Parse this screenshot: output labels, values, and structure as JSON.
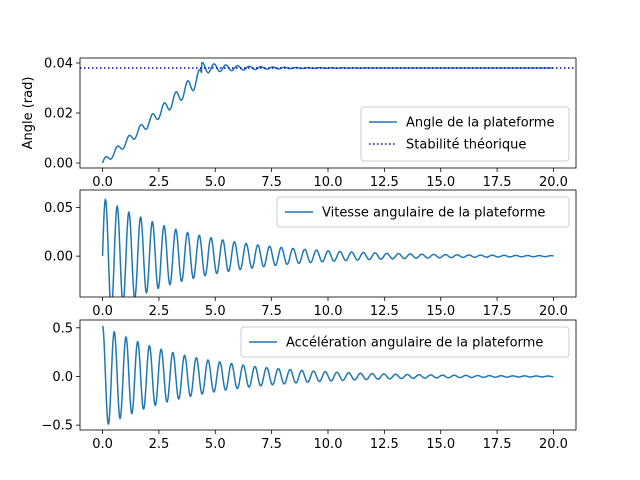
{
  "chart_data": [
    {
      "type": "line",
      "ylabel": "Angle (rad)",
      "xlim": [
        -1.0,
        21.0
      ],
      "ylim": [
        -0.002,
        0.042
      ],
      "xticks": [
        "0.0",
        "2.5",
        "5.0",
        "7.5",
        "10.0",
        "12.5",
        "15.0",
        "17.5",
        "20.0"
      ],
      "xtick_values": [
        0,
        2.5,
        5,
        7.5,
        10,
        12.5,
        15,
        17.5,
        20
      ],
      "yticks": [
        "0.00",
        "0.02",
        "0.04"
      ],
      "ytick_values": [
        0.0,
        0.02,
        0.04
      ],
      "legend_position": "lower-right",
      "grid": false,
      "series": [
        {
          "name": "Angle de la plateforme",
          "color": "#1f77b4",
          "style": "solid",
          "model": "angle",
          "x": [
            0,
            1,
            2,
            3,
            4,
            4.4,
            5,
            6,
            8,
            10,
            15,
            20
          ],
          "y": [
            0.0,
            0.008,
            0.016,
            0.024,
            0.033,
            0.04,
            0.036,
            0.039,
            0.038,
            0.038,
            0.038,
            0.038
          ]
        },
        {
          "name": "Stabilité théorique",
          "color": "#0000cc",
          "style": "dotted",
          "model": "constant",
          "x": [
            -1.0,
            21.0
          ],
          "y": [
            0.038,
            0.038
          ]
        }
      ]
    },
    {
      "type": "line",
      "xlim": [
        -1.0,
        21.0
      ],
      "ylim": [
        -0.042,
        0.068
      ],
      "xticks": [
        "0.0",
        "2.5",
        "5.0",
        "7.5",
        "10.0",
        "12.5",
        "15.0",
        "17.5",
        "20.0"
      ],
      "xtick_values": [
        0,
        2.5,
        5,
        7.5,
        10,
        12.5,
        15,
        17.5,
        20
      ],
      "yticks": [
        "0.00",
        "0.05"
      ],
      "ytick_values": [
        0.0,
        0.05
      ],
      "legend_position": "upper-right",
      "grid": false,
      "series": [
        {
          "name": "Vitesse angulaire de la plateforme",
          "color": "#1f77b4",
          "style": "solid",
          "model": "velocity",
          "x": [
            0,
            0.15,
            0.45,
            2.5,
            5,
            7.5,
            10,
            15,
            20
          ],
          "y": [
            0.0,
            0.061,
            -0.041,
            0.043,
            0.031,
            0.018,
            0.009,
            0.003,
            0.0
          ]
        }
      ]
    },
    {
      "type": "line",
      "xlim": [
        -1.0,
        21.0
      ],
      "ylim": [
        -0.55,
        0.58
      ],
      "xticks": [
        "0.0",
        "2.5",
        "5.0",
        "7.5",
        "10.0",
        "12.5",
        "15.0",
        "17.5",
        "20.0"
      ],
      "xtick_values": [
        0,
        2.5,
        5,
        7.5,
        10,
        12.5,
        15,
        17.5,
        20
      ],
      "yticks": [
        "−0.5",
        "0.0",
        "0.5"
      ],
      "ytick_values": [
        -0.5,
        0.0,
        0.5
      ],
      "legend_position": "upper-right",
      "grid": false,
      "series": [
        {
          "name": "Accélération angulaire de la plateforme",
          "color": "#1f77b4",
          "style": "solid",
          "model": "acceleration",
          "x": [
            0,
            0.35,
            0.6,
            2.5,
            5,
            7.5,
            10,
            15,
            20
          ],
          "y": [
            0.52,
            -0.49,
            0.44,
            0.35,
            0.25,
            0.14,
            0.07,
            0.02,
            0.0
          ]
        }
      ]
    }
  ]
}
